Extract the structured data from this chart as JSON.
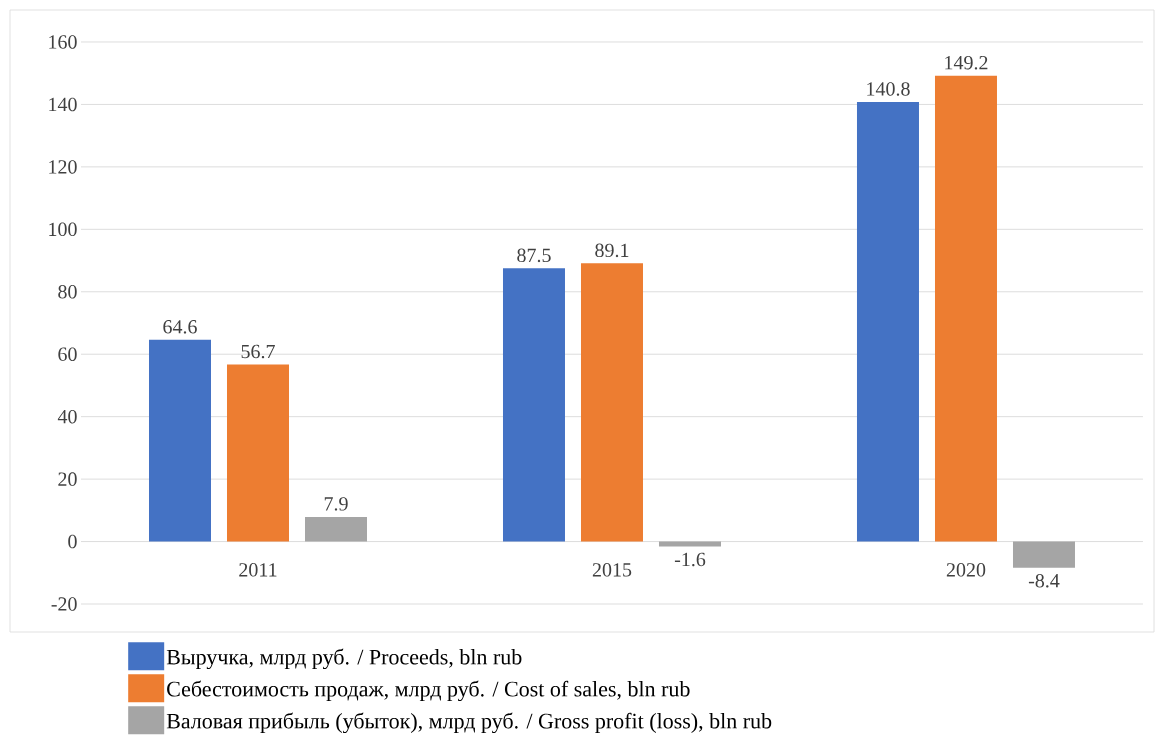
{
  "chart_data": {
    "type": "bar",
    "categories": [
      "2011",
      "2015",
      "2020"
    ],
    "series": [
      {
        "name": "Выручка, млрд руб. / Proceeds, bln rub",
        "color": "#4472c4",
        "values": [
          64.6,
          87.5,
          140.8
        ]
      },
      {
        "name": "Себестоимость продаж, млрд руб. / Cost of sales, bln rub",
        "color": "#ed7d31",
        "values": [
          56.7,
          89.1,
          149.2
        ]
      },
      {
        "name": "Валовая прибыль (убыток), млрд руб. / Gross profit (loss), bln rub",
        "color": "#a5a5a5",
        "values": [
          7.9,
          -1.6,
          -8.4
        ]
      }
    ],
    "ylim": [
      -20,
      160
    ],
    "yticks": [
      -20,
      0,
      20,
      40,
      60,
      80,
      100,
      120,
      140,
      160
    ],
    "grid": "y",
    "legend": "bottom",
    "data_labels": true
  }
}
